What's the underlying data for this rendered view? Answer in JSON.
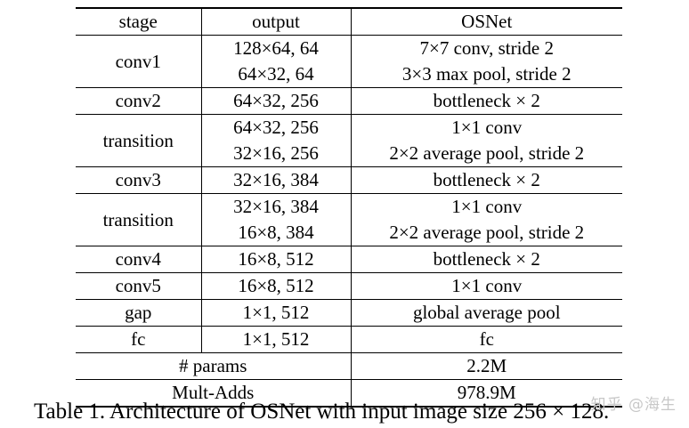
{
  "table": {
    "headers": [
      "stage",
      "output",
      "OSNet"
    ],
    "groups": [
      {
        "stage": "conv1",
        "rows": [
          [
            "128×64, 64",
            "7×7 conv, stride 2"
          ],
          [
            "64×32, 64",
            "3×3 max pool, stride 2"
          ]
        ]
      },
      {
        "stage": "conv2",
        "rows": [
          [
            "64×32, 256",
            "bottleneck × 2"
          ]
        ]
      },
      {
        "stage": "transition",
        "rows": [
          [
            "64×32, 256",
            "1×1 conv"
          ],
          [
            "32×16, 256",
            "2×2 average pool, stride 2"
          ]
        ]
      },
      {
        "stage": "conv3",
        "rows": [
          [
            "32×16, 384",
            "bottleneck × 2"
          ]
        ]
      },
      {
        "stage": "transition",
        "rows": [
          [
            "32×16, 384",
            "1×1 conv"
          ],
          [
            "16×8, 384",
            "2×2 average pool, stride 2"
          ]
        ]
      },
      {
        "stage": "conv4",
        "rows": [
          [
            "16×8, 512",
            "bottleneck × 2"
          ]
        ]
      },
      {
        "stage": "conv5",
        "rows": [
          [
            "16×8, 512",
            "1×1 conv"
          ]
        ]
      },
      {
        "stage": "gap",
        "rows": [
          [
            "1×1, 512",
            "global average pool"
          ]
        ]
      },
      {
        "stage": "fc",
        "rows": [
          [
            "1×1, 512",
            "fc"
          ]
        ]
      }
    ],
    "summary": [
      {
        "label": "# params",
        "value": "2.2M"
      },
      {
        "label": "Mult-Adds",
        "value": "978.9M"
      }
    ]
  },
  "caption": "Table 1. Architecture of OSNet with input image size 256 × 128.",
  "watermark": "知乎 @海生"
}
